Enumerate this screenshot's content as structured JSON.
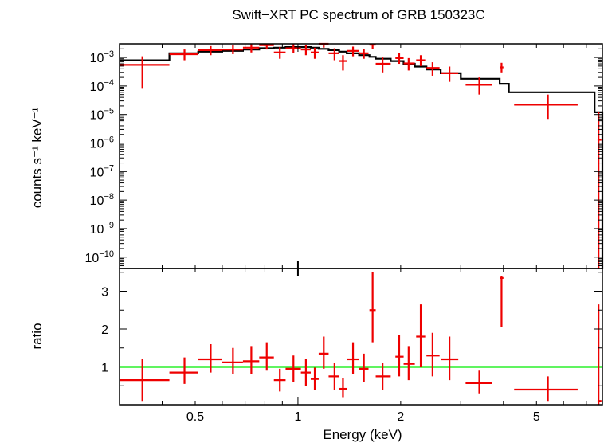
{
  "chart_data": [
    {
      "type": "scatter",
      "title": "Swift−XRT PC spectrum of GRB 150323C",
      "ylabel": "counts s⁻¹ keV⁻¹",
      "x_scale": "log",
      "y_scale": "log",
      "xlim": [
        0.3,
        7.8
      ],
      "ylim": [
        4e-11,
        0.003
      ],
      "y_ticks": [
        {
          "value": 0.001,
          "mantissa": "10",
          "exp": "−3"
        },
        {
          "value": 0.0001,
          "mantissa": "10",
          "exp": "−4"
        },
        {
          "value": 1e-05,
          "mantissa": "10",
          "exp": "−5"
        },
        {
          "value": 1e-06,
          "mantissa": "10",
          "exp": "−6"
        },
        {
          "value": 1e-07,
          "mantissa": "10",
          "exp": "−7"
        },
        {
          "value": 1e-08,
          "mantissa": "10",
          "exp": "−8"
        },
        {
          "value": 1e-09,
          "mantissa": "10",
          "exp": "−9"
        },
        {
          "value": 1e-10,
          "mantissa": "10",
          "exp": "−10"
        }
      ],
      "series": [
        {
          "kind": "data",
          "color": "#ee0000",
          "points": [
            {
              "x": 0.35,
              "xlo": 0.3,
              "xhi": 0.42,
              "y": 0.00055,
              "ylo": 8e-05,
              "yhi": 0.0011
            },
            {
              "x": 0.465,
              "xlo": 0.42,
              "xhi": 0.51,
              "y": 0.0013,
              "ylo": 0.0008,
              "yhi": 0.0019
            },
            {
              "x": 0.555,
              "xlo": 0.51,
              "xhi": 0.6,
              "y": 0.0018,
              "ylo": 0.0012,
              "yhi": 0.0025
            },
            {
              "x": 0.645,
              "xlo": 0.6,
              "xhi": 0.69,
              "y": 0.0019,
              "ylo": 0.0013,
              "yhi": 0.0027
            },
            {
              "x": 0.73,
              "xlo": 0.69,
              "xhi": 0.77,
              "y": 0.0022,
              "ylo": 0.0015,
              "yhi": 0.003
            },
            {
              "x": 0.81,
              "xlo": 0.77,
              "xhi": 0.85,
              "y": 0.0027,
              "ylo": 0.0019,
              "yhi": 0.0034
            },
            {
              "x": 0.885,
              "xlo": 0.85,
              "xhi": 0.92,
              "y": 0.0015,
              "ylo": 0.0009,
              "yhi": 0.0023
            },
            {
              "x": 0.97,
              "xlo": 0.92,
              "xhi": 1.02,
              "y": 0.0021,
              "ylo": 0.0014,
              "yhi": 0.003
            },
            {
              "x": 1.055,
              "xlo": 1.02,
              "xhi": 1.09,
              "y": 0.0019,
              "ylo": 0.0012,
              "yhi": 0.0027
            },
            {
              "x": 1.12,
              "xlo": 1.09,
              "xhi": 1.15,
              "y": 0.0015,
              "ylo": 0.0009,
              "yhi": 0.0022
            },
            {
              "x": 1.19,
              "xlo": 1.15,
              "xhi": 1.23,
              "y": 0.0031,
              "ylo": 0.0022,
              "yhi": 0.0042
            },
            {
              "x": 1.28,
              "xlo": 1.23,
              "xhi": 1.32,
              "y": 0.0014,
              "ylo": 0.0008,
              "yhi": 0.0021
            },
            {
              "x": 1.355,
              "xlo": 1.32,
              "xhi": 1.39,
              "y": 0.00075,
              "ylo": 0.00035,
              "yhi": 0.0012
            },
            {
              "x": 1.45,
              "xlo": 1.39,
              "xhi": 1.51,
              "y": 0.0017,
              "ylo": 0.0011,
              "yhi": 0.0024
            },
            {
              "x": 1.56,
              "xlo": 1.51,
              "xhi": 1.61,
              "y": 0.0014,
              "ylo": 0.0009,
              "yhi": 0.002
            },
            {
              "x": 1.655,
              "xlo": 1.62,
              "xhi": 1.69,
              "y": 0.0028,
              "ylo": 0.002,
              "yhi": 0.0037
            },
            {
              "x": 1.77,
              "xlo": 1.69,
              "xhi": 1.87,
              "y": 0.0006,
              "ylo": 0.0003,
              "yhi": 0.001
            },
            {
              "x": 1.98,
              "xlo": 1.93,
              "xhi": 2.04,
              "y": 0.00095,
              "ylo": 0.0006,
              "yhi": 0.0014
            },
            {
              "x": 2.11,
              "xlo": 2.04,
              "xhi": 2.2,
              "y": 0.00062,
              "ylo": 0.00035,
              "yhi": 0.00095
            },
            {
              "x": 2.29,
              "xlo": 2.22,
              "xhi": 2.36,
              "y": 0.0008,
              "ylo": 0.0005,
              "yhi": 0.0012
            },
            {
              "x": 2.48,
              "xlo": 2.38,
              "xhi": 2.6,
              "y": 0.00043,
              "ylo": 0.00023,
              "yhi": 0.00068
            },
            {
              "x": 2.78,
              "xlo": 2.62,
              "xhi": 2.95,
              "y": 0.00028,
              "ylo": 0.00014,
              "yhi": 0.00048
            },
            {
              "x": 3.4,
              "xlo": 3.1,
              "xhi": 3.7,
              "y": 0.00011,
              "ylo": 5e-05,
              "yhi": 0.0002
            },
            {
              "x": 3.95,
              "xlo": 3.9,
              "xhi": 4.0,
              "y": 0.00045,
              "ylo": 0.0003,
              "yhi": 0.00065
            },
            {
              "x": 5.4,
              "xlo": 4.3,
              "xhi": 6.6,
              "y": 2.2e-05,
              "ylo": 7e-06,
              "yhi": 5e-05
            },
            {
              "x": 7.6,
              "xlo": 7.55,
              "xhi": 7.75,
              "y": 1.3e-06,
              "ylo": 4e-11,
              "yhi": 1.2e-05
            }
          ]
        },
        {
          "kind": "model",
          "color": "#000000",
          "steps": [
            {
              "xlo": 0.3,
              "xhi": 0.42,
              "y": 0.0008
            },
            {
              "xlo": 0.42,
              "xhi": 0.51,
              "y": 0.0014
            },
            {
              "xlo": 0.51,
              "xhi": 0.6,
              "y": 0.0016
            },
            {
              "xlo": 0.6,
              "xhi": 0.69,
              "y": 0.0017
            },
            {
              "xlo": 0.69,
              "xhi": 0.77,
              "y": 0.0019
            },
            {
              "xlo": 0.77,
              "xhi": 0.85,
              "y": 0.0021
            },
            {
              "xlo": 0.85,
              "xhi": 0.92,
              "y": 0.0022
            },
            {
              "xlo": 0.92,
              "xhi": 1.02,
              "y": 0.0023
            },
            {
              "xlo": 1.02,
              "xhi": 1.09,
              "y": 0.0023
            },
            {
              "xlo": 1.09,
              "xhi": 1.15,
              "y": 0.0022
            },
            {
              "xlo": 1.15,
              "xhi": 1.23,
              "y": 0.002
            },
            {
              "xlo": 1.23,
              "xhi": 1.32,
              "y": 0.0018
            },
            {
              "xlo": 1.32,
              "xhi": 1.39,
              "y": 0.0016
            },
            {
              "xlo": 1.39,
              "xhi": 1.51,
              "y": 0.0014
            },
            {
              "xlo": 1.51,
              "xhi": 1.62,
              "y": 0.0012
            },
            {
              "xlo": 1.62,
              "xhi": 1.69,
              "y": 0.00105
            },
            {
              "xlo": 1.69,
              "xhi": 1.87,
              "y": 0.0009
            },
            {
              "xlo": 1.87,
              "xhi": 2.04,
              "y": 0.00075
            },
            {
              "xlo": 2.04,
              "xhi": 2.2,
              "y": 0.0006
            },
            {
              "xlo": 2.2,
              "xhi": 2.38,
              "y": 0.00048
            },
            {
              "xlo": 2.38,
              "xhi": 2.62,
              "y": 0.00038
            },
            {
              "xlo": 2.62,
              "xhi": 3.0,
              "y": 0.00028
            },
            {
              "xlo": 3.0,
              "xhi": 3.9,
              "y": 0.00018
            },
            {
              "xlo": 3.9,
              "xhi": 4.15,
              "y": 0.00012
            },
            {
              "xlo": 4.15,
              "xhi": 7.4,
              "y": 6e-05
            },
            {
              "xlo": 7.4,
              "xhi": 7.8,
              "y": 1.2e-05
            }
          ]
        }
      ]
    },
    {
      "type": "scatter",
      "xlabel": "Energy (keV)",
      "ylabel": "ratio",
      "x_scale": "log",
      "y_scale": "linear",
      "xlim": [
        0.3,
        7.8
      ],
      "ylim": [
        0,
        3.6
      ],
      "x_ticks": [
        {
          "value": 0.5,
          "label": "0.5"
        },
        {
          "value": 1,
          "label": "1"
        },
        {
          "value": 2,
          "label": "2"
        },
        {
          "value": 5,
          "label": "5"
        }
      ],
      "y_ticks": [
        {
          "value": 1,
          "label": "1"
        },
        {
          "value": 2,
          "label": "2"
        },
        {
          "value": 3,
          "label": "3"
        }
      ],
      "reference_line": {
        "y": 1,
        "color": "#00ee00"
      },
      "series": [
        {
          "kind": "data",
          "color": "#ee0000",
          "points": [
            {
              "x": 0.35,
              "xlo": 0.3,
              "xhi": 0.42,
              "y": 0.65,
              "ylo": 0.1,
              "yhi": 1.2
            },
            {
              "x": 0.465,
              "xlo": 0.42,
              "xhi": 0.51,
              "y": 0.85,
              "ylo": 0.55,
              "yhi": 1.25
            },
            {
              "x": 0.555,
              "xlo": 0.51,
              "xhi": 0.6,
              "y": 1.2,
              "ylo": 0.85,
              "yhi": 1.6
            },
            {
              "x": 0.645,
              "xlo": 0.6,
              "xhi": 0.69,
              "y": 1.12,
              "ylo": 0.8,
              "yhi": 1.5
            },
            {
              "x": 0.73,
              "xlo": 0.69,
              "xhi": 0.77,
              "y": 1.15,
              "ylo": 0.8,
              "yhi": 1.55
            },
            {
              "x": 0.81,
              "xlo": 0.77,
              "xhi": 0.85,
              "y": 1.25,
              "ylo": 0.9,
              "yhi": 1.65
            },
            {
              "x": 0.885,
              "xlo": 0.85,
              "xhi": 0.92,
              "y": 0.65,
              "ylo": 0.35,
              "yhi": 0.95
            },
            {
              "x": 0.97,
              "xlo": 0.92,
              "xhi": 1.02,
              "y": 0.95,
              "ylo": 0.6,
              "yhi": 1.3
            },
            {
              "x": 1.055,
              "xlo": 1.02,
              "xhi": 1.09,
              "y": 0.85,
              "ylo": 0.5,
              "yhi": 1.2
            },
            {
              "x": 1.12,
              "xlo": 1.09,
              "xhi": 1.15,
              "y": 0.68,
              "ylo": 0.4,
              "yhi": 0.98
            },
            {
              "x": 1.19,
              "xlo": 1.15,
              "xhi": 1.23,
              "y": 1.35,
              "ylo": 0.95,
              "yhi": 1.8
            },
            {
              "x": 1.28,
              "xlo": 1.23,
              "xhi": 1.32,
              "y": 0.75,
              "ylo": 0.4,
              "yhi": 1.1
            },
            {
              "x": 1.355,
              "xlo": 1.32,
              "xhi": 1.39,
              "y": 0.42,
              "ylo": 0.2,
              "yhi": 0.7
            },
            {
              "x": 1.45,
              "xlo": 1.39,
              "xhi": 1.51,
              "y": 1.2,
              "ylo": 0.8,
              "yhi": 1.65
            },
            {
              "x": 1.56,
              "xlo": 1.51,
              "xhi": 1.61,
              "y": 0.95,
              "ylo": 0.6,
              "yhi": 1.35
            },
            {
              "x": 1.655,
              "xlo": 1.62,
              "xhi": 1.69,
              "y": 2.5,
              "ylo": 1.65,
              "yhi": 3.5
            },
            {
              "x": 1.77,
              "xlo": 1.69,
              "xhi": 1.87,
              "y": 0.75,
              "ylo": 0.4,
              "yhi": 1.1
            },
            {
              "x": 1.98,
              "xlo": 1.93,
              "xhi": 2.04,
              "y": 1.27,
              "ylo": 0.75,
              "yhi": 1.85
            },
            {
              "x": 2.11,
              "xlo": 2.04,
              "xhi": 2.2,
              "y": 1.08,
              "ylo": 0.65,
              "yhi": 1.55
            },
            {
              "x": 2.29,
              "xlo": 2.22,
              "xhi": 2.36,
              "y": 1.8,
              "ylo": 1.0,
              "yhi": 2.65
            },
            {
              "x": 2.48,
              "xlo": 2.38,
              "xhi": 2.6,
              "y": 1.3,
              "ylo": 0.75,
              "yhi": 1.9
            },
            {
              "x": 2.78,
              "xlo": 2.62,
              "xhi": 2.95,
              "y": 1.2,
              "ylo": 0.65,
              "yhi": 1.8
            },
            {
              "x": 3.4,
              "xlo": 3.1,
              "xhi": 3.7,
              "y": 0.57,
              "ylo": 0.3,
              "yhi": 0.9
            },
            {
              "x": 3.95,
              "xlo": 3.9,
              "xhi": 4.0,
              "y": 3.35,
              "ylo": 2.05,
              "yhi": 3.4
            },
            {
              "x": 5.4,
              "xlo": 4.3,
              "xhi": 6.6,
              "y": 0.4,
              "ylo": 0.1,
              "yhi": 0.75
            },
            {
              "x": 7.6,
              "xlo": 7.55,
              "xhi": 7.75,
              "y": 0.1,
              "ylo": 0.0,
              "yhi": 2.65
            }
          ]
        }
      ]
    }
  ]
}
